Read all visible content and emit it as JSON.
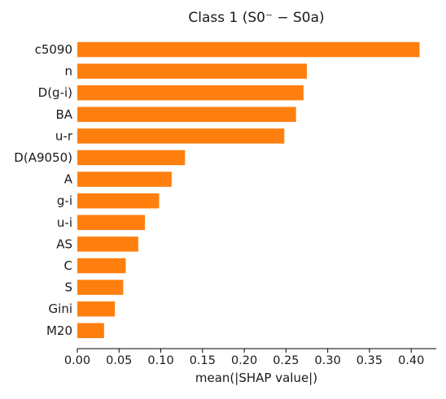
{
  "chart_data": {
    "type": "bar",
    "orientation": "horizontal",
    "title": "Class 1 (S0⁻ − S0a)",
    "xlabel": "mean(|SHAP value|)",
    "ylabel": "",
    "xlim": [
      0.0,
      0.43
    ],
    "xticks": [
      0.0,
      0.05,
      0.1,
      0.15,
      0.2,
      0.25,
      0.3,
      0.35,
      0.4
    ],
    "xtick_labels": [
      "0.00",
      "0.05",
      "0.10",
      "0.15",
      "0.20",
      "0.25",
      "0.30",
      "0.35",
      "0.40"
    ],
    "grid": false,
    "legend": "none",
    "bar_color": "#ff7f0e",
    "categories": [
      "c5090",
      "n",
      "D(g-i)",
      "BA",
      "u-r",
      "D(A9050)",
      "A",
      "g-i",
      "u-i",
      "AS",
      "C",
      "S",
      "Gini",
      "M20"
    ],
    "values": [
      0.41,
      0.275,
      0.271,
      0.262,
      0.248,
      0.129,
      0.113,
      0.098,
      0.081,
      0.073,
      0.058,
      0.055,
      0.045,
      0.032
    ]
  }
}
